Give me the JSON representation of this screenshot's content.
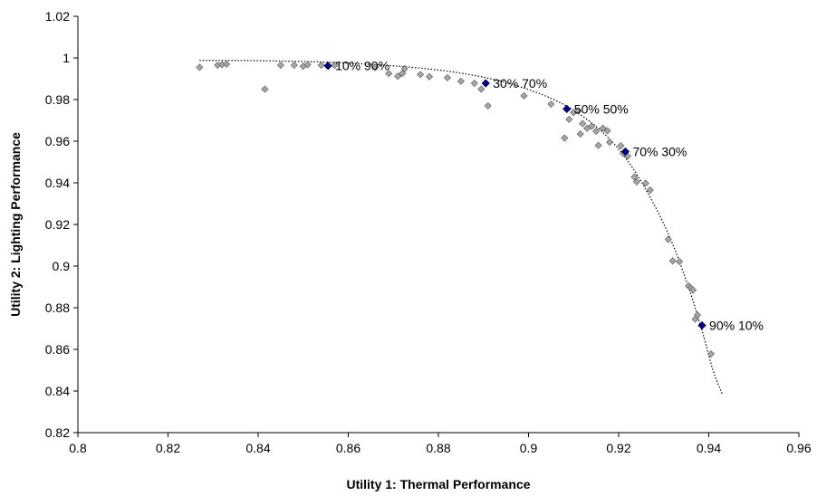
{
  "chart_data": {
    "type": "scatter",
    "xlabel": "Utility 1: Thermal Performance",
    "ylabel": "Utility 2: Lighting Performance",
    "xlim": [
      0.8,
      0.96
    ],
    "ylim": [
      0.82,
      1.02
    ],
    "xticks": [
      "0.8",
      "0.82",
      "0.84",
      "0.86",
      "0.88",
      "0.9",
      "0.92",
      "0.94",
      "0.96"
    ],
    "yticks": [
      "0.82",
      "0.84",
      "0.86",
      "0.88",
      "0.9",
      "0.92",
      "0.94",
      "0.96",
      "0.98",
      "1",
      "1.02"
    ],
    "grid": false,
    "series": [
      {
        "marker": "diamond",
        "color": "#a6a6a6",
        "points": [
          [
            0.827,
            0.9955
          ],
          [
            0.831,
            0.9965
          ],
          [
            0.832,
            0.9968
          ],
          [
            0.833,
            0.997
          ],
          [
            0.8415,
            0.985
          ],
          [
            0.845,
            0.9965
          ],
          [
            0.848,
            0.9965
          ],
          [
            0.85,
            0.996
          ],
          [
            0.851,
            0.9968
          ],
          [
            0.854,
            0.9965
          ],
          [
            0.857,
            0.9965
          ],
          [
            0.866,
            0.9955
          ],
          [
            0.869,
            0.9925
          ],
          [
            0.871,
            0.9912
          ],
          [
            0.872,
            0.9925
          ],
          [
            0.8725,
            0.9948
          ],
          [
            0.876,
            0.992
          ],
          [
            0.878,
            0.991
          ],
          [
            0.882,
            0.9905
          ],
          [
            0.885,
            0.9888
          ],
          [
            0.888,
            0.9878
          ],
          [
            0.8895,
            0.985
          ],
          [
            0.891,
            0.977
          ],
          [
            0.899,
            0.9818
          ],
          [
            0.905,
            0.9778
          ],
          [
            0.908,
            0.9615
          ],
          [
            0.909,
            0.9705
          ],
          [
            0.91,
            0.9738
          ],
          [
            0.911,
            0.9745
          ],
          [
            0.9115,
            0.9635
          ],
          [
            0.912,
            0.9685
          ],
          [
            0.913,
            0.9662
          ],
          [
            0.914,
            0.9672
          ],
          [
            0.915,
            0.9648
          ],
          [
            0.9155,
            0.958
          ],
          [
            0.9165,
            0.9662
          ],
          [
            0.9175,
            0.965
          ],
          [
            0.918,
            0.9595
          ],
          [
            0.9205,
            0.9578
          ],
          [
            0.921,
            0.9542
          ],
          [
            0.922,
            0.9528
          ],
          [
            0.9235,
            0.9428
          ],
          [
            0.924,
            0.9405
          ],
          [
            0.926,
            0.9398
          ],
          [
            0.927,
            0.9365
          ],
          [
            0.931,
            0.9128
          ],
          [
            0.932,
            0.9025
          ],
          [
            0.9335,
            0.9022
          ],
          [
            0.9355,
            0.8905
          ],
          [
            0.936,
            0.8895
          ],
          [
            0.9365,
            0.8885
          ],
          [
            0.937,
            0.8745
          ],
          [
            0.9375,
            0.8765
          ],
          [
            0.9405,
            0.8578
          ]
        ]
      },
      {
        "marker": "diamond",
        "color": "#00008b",
        "points": [
          [
            0.8555,
            0.9962
          ],
          [
            0.8905,
            0.9878
          ],
          [
            0.9085,
            0.9755
          ],
          [
            0.9215,
            0.955
          ],
          [
            0.9385,
            0.8715
          ]
        ]
      }
    ],
    "trendline": {
      "style": "dotted",
      "color": "#000000",
      "x": [
        0.827,
        0.835,
        0.845,
        0.855,
        0.865,
        0.875,
        0.885,
        0.895,
        0.905,
        0.912,
        0.918,
        0.923,
        0.928,
        0.932,
        0.936,
        0.939,
        0.941,
        0.943
      ],
      "y": [
        0.9988,
        0.9988,
        0.9985,
        0.998,
        0.9969,
        0.9953,
        0.9927,
        0.9882,
        0.9806,
        0.972,
        0.961,
        0.9475,
        0.929,
        0.9105,
        0.8867,
        0.8652,
        0.8495,
        0.8385
      ]
    },
    "annotations": [
      {
        "text": "10% 90%",
        "x": 0.8555,
        "y": 0.9962
      },
      {
        "text": "30% 70%",
        "x": 0.8905,
        "y": 0.9878
      },
      {
        "text": "50% 50%",
        "x": 0.9085,
        "y": 0.9755
      },
      {
        "text": "70% 30%",
        "x": 0.9215,
        "y": 0.955
      },
      {
        "text": "90% 10%",
        "x": 0.9385,
        "y": 0.8715
      }
    ]
  }
}
